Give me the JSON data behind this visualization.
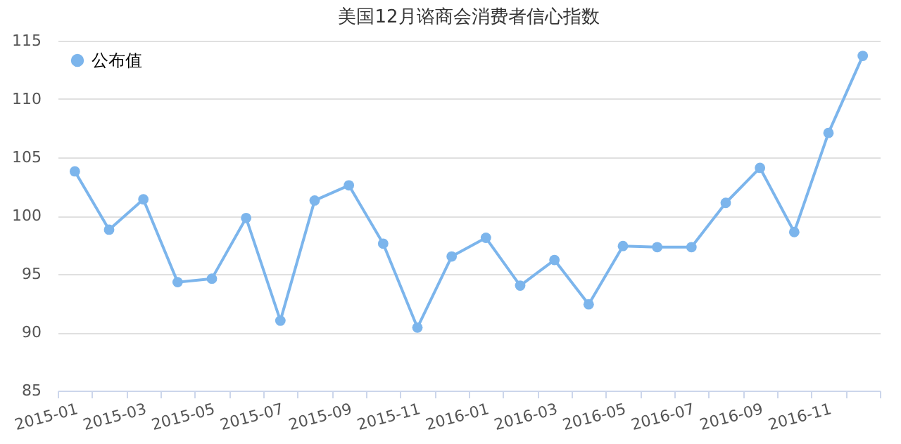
{
  "chart_data": {
    "type": "line",
    "title": "美国12月谘商会消费者信心指数",
    "categories": [
      "2015-01",
      null,
      "2015-03",
      null,
      "2015-05",
      null,
      "2015-07",
      null,
      "2015-09",
      null,
      "2015-11",
      null,
      "2016-01",
      null,
      "2016-03",
      null,
      "2016-05",
      null,
      "2016-07",
      null,
      "2016-09",
      null,
      "2016-11",
      null
    ],
    "series": [
      {
        "name": "公布值",
        "color": "#7cb5ec",
        "values": [
          103.8,
          98.8,
          101.4,
          94.3,
          94.6,
          99.8,
          91.0,
          101.3,
          102.6,
          97.6,
          90.4,
          96.5,
          98.1,
          94.0,
          96.2,
          92.4,
          97.4,
          97.3,
          97.3,
          101.1,
          104.1,
          98.6,
          107.1,
          113.7
        ]
      }
    ],
    "ylim": [
      85,
      115
    ],
    "yticks": [
      85,
      90,
      95,
      100,
      105,
      110,
      115
    ],
    "grid": "y",
    "legend": "top left",
    "marker": "circle",
    "line_style": "solid"
  }
}
